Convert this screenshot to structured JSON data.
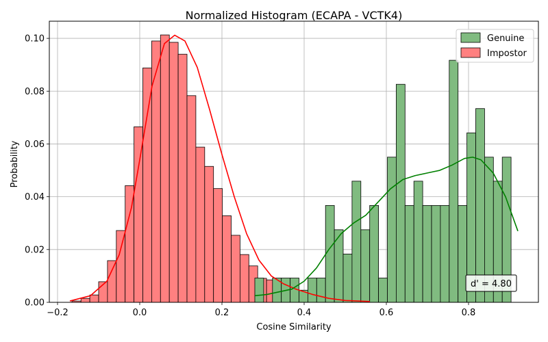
{
  "chart_data": {
    "type": "histogram",
    "title": "Normalized Histogram (ECAPA - VCTK4)",
    "xlabel": "Cosine Similarity",
    "ylabel": "Probability",
    "xlim": [
      -0.22,
      0.97
    ],
    "ylim": [
      0,
      0.1065
    ],
    "xticks": [
      -0.2,
      0.0,
      0.2,
      0.4,
      0.6,
      0.8
    ],
    "xtick_labels": [
      "−0.2",
      "0.0",
      "0.2",
      "0.4",
      "0.6",
      "0.8"
    ],
    "yticks": [
      0.0,
      0.02,
      0.04,
      0.06,
      0.08,
      0.1
    ],
    "ytick_labels": [
      "0.00",
      "0.02",
      "0.04",
      "0.06",
      "0.08",
      "0.10"
    ],
    "grid": true,
    "legend_position": "top-right",
    "annotation": "d' = 4.80",
    "series": [
      {
        "name": "Impostor",
        "color": "#ff0000",
        "fill_color": "#ff8080",
        "bin_edges": [
          -0.165,
          -0.143,
          -0.1215,
          -0.1,
          -0.0785,
          -0.057,
          -0.0355,
          -0.014,
          0.0075,
          0.029,
          0.0505,
          0.072,
          0.0935,
          0.115,
          0.1365,
          0.158,
          0.1795,
          0.201,
          0.2225,
          0.244,
          0.2655,
          0.287,
          0.3085,
          0.33,
          0.3515,
          0.373,
          0.3945,
          0.416,
          0.4375,
          0.459,
          0.4805,
          0.502,
          0.5235,
          0.545
        ],
        "values": [
          0.0005,
          0.0015,
          0.0028,
          0.0078,
          0.0158,
          0.0272,
          0.0442,
          0.0665,
          0.0888,
          0.099,
          0.1013,
          0.0985,
          0.094,
          0.0783,
          0.0588,
          0.0515,
          0.0431,
          0.0328,
          0.0254,
          0.0181,
          0.0138,
          0.0091,
          0.0085,
          0.0066,
          0.0046,
          0.0033,
          0.0024,
          0.0015,
          0.001,
          0.0006,
          0.0004,
          0.0003,
          0.0002
        ],
        "kde": [
          [
            -0.17,
            0.0005
          ],
          [
            -0.12,
            0.0025
          ],
          [
            -0.08,
            0.008
          ],
          [
            -0.05,
            0.018
          ],
          [
            -0.02,
            0.036
          ],
          [
            0.0,
            0.054
          ],
          [
            0.03,
            0.082
          ],
          [
            0.06,
            0.098
          ],
          [
            0.085,
            0.1012
          ],
          [
            0.11,
            0.099
          ],
          [
            0.14,
            0.089
          ],
          [
            0.17,
            0.073
          ],
          [
            0.2,
            0.056
          ],
          [
            0.23,
            0.04
          ],
          [
            0.26,
            0.026
          ],
          [
            0.29,
            0.016
          ],
          [
            0.32,
            0.01
          ],
          [
            0.35,
            0.007
          ],
          [
            0.38,
            0.005
          ],
          [
            0.42,
            0.003
          ],
          [
            0.46,
            0.0015
          ],
          [
            0.5,
            0.0007
          ],
          [
            0.56,
            0.0003
          ]
        ]
      },
      {
        "name": "Genuine",
        "color": "#008000",
        "fill_color": "#80bb80",
        "bin_edges": [
          0.28,
          0.3015,
          0.323,
          0.3445,
          0.366,
          0.3875,
          0.409,
          0.4305,
          0.452,
          0.4735,
          0.495,
          0.5165,
          0.538,
          0.5595,
          0.581,
          0.6025,
          0.624,
          0.6455,
          0.667,
          0.6885,
          0.71,
          0.7315,
          0.753,
          0.7745,
          0.796,
          0.8175,
          0.839,
          0.8605,
          0.882,
          0.9035,
          0.925
        ],
        "values": [
          0.0092,
          0.0,
          0.0092,
          0.0092,
          0.0092,
          0.0046,
          0.0092,
          0.0092,
          0.0367,
          0.0275,
          0.0183,
          0.0459,
          0.0275,
          0.0367,
          0.0092,
          0.055,
          0.0826,
          0.0367,
          0.0459,
          0.0367,
          0.0367,
          0.0367,
          0.0917,
          0.0367,
          0.0642,
          0.0734,
          0.055,
          0.0459,
          0.055,
          0.0
        ],
        "kde": [
          [
            0.28,
            0.0025
          ],
          [
            0.31,
            0.003
          ],
          [
            0.34,
            0.004
          ],
          [
            0.37,
            0.005
          ],
          [
            0.4,
            0.008
          ],
          [
            0.43,
            0.013
          ],
          [
            0.46,
            0.02
          ],
          [
            0.49,
            0.026
          ],
          [
            0.52,
            0.03
          ],
          [
            0.55,
            0.033
          ],
          [
            0.58,
            0.038
          ],
          [
            0.61,
            0.043
          ],
          [
            0.64,
            0.0465
          ],
          [
            0.67,
            0.048
          ],
          [
            0.7,
            0.049
          ],
          [
            0.73,
            0.05
          ],
          [
            0.76,
            0.052
          ],
          [
            0.79,
            0.0545
          ],
          [
            0.81,
            0.055
          ],
          [
            0.83,
            0.054
          ],
          [
            0.86,
            0.049
          ],
          [
            0.89,
            0.04
          ],
          [
            0.92,
            0.027
          ]
        ]
      }
    ]
  }
}
